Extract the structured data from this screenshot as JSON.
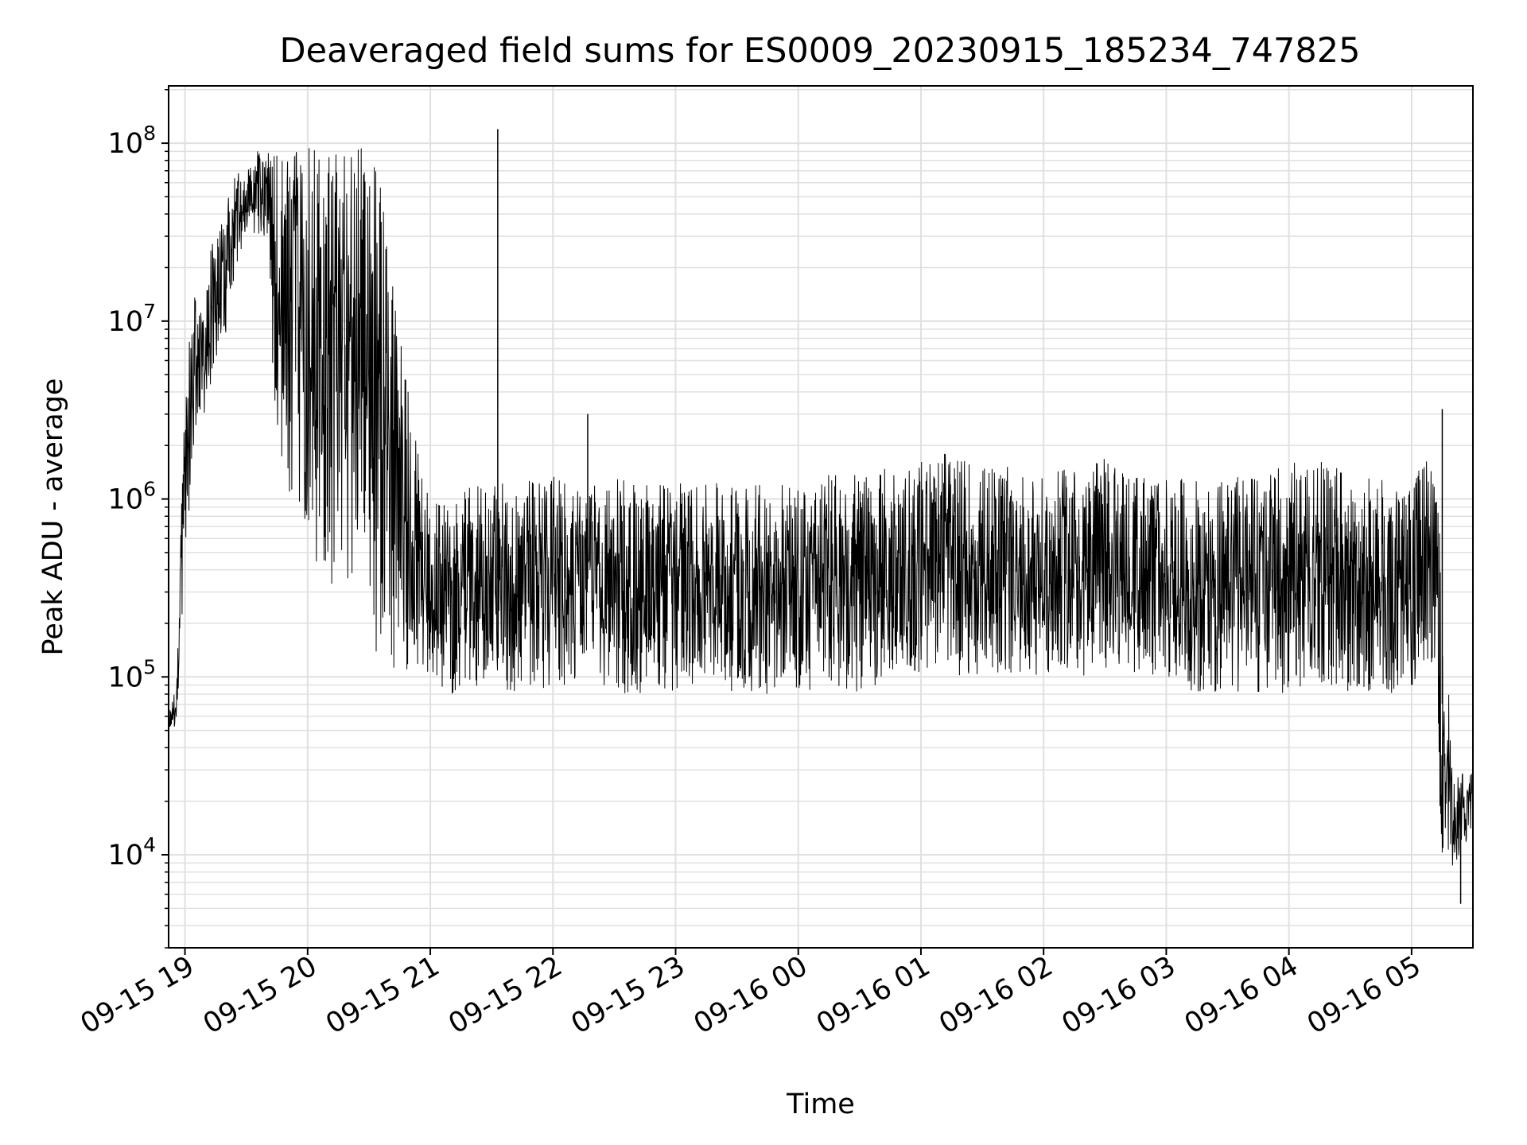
{
  "chart_data": {
    "type": "line",
    "title": "Deaveraged field sums for ES0009_20230915_185234_747825",
    "xlabel": "Time",
    "ylabel": "Peak ADU - average",
    "yscale": "log",
    "ylim": [
      3000,
      210000000
    ],
    "xlim": [
      "2023-09-15 18:52",
      "2023-09-16 05:30"
    ],
    "grid": true,
    "line_color": "#000000",
    "grid_color": "#e0e0e0",
    "x_ticks": [
      {
        "x": "2023-09-15 19:00",
        "label": "09-15 19"
      },
      {
        "x": "2023-09-15 20:00",
        "label": "09-15 20"
      },
      {
        "x": "2023-09-15 21:00",
        "label": "09-15 21"
      },
      {
        "x": "2023-09-15 22:00",
        "label": "09-15 22"
      },
      {
        "x": "2023-09-15 23:00",
        "label": "09-15 23"
      },
      {
        "x": "2023-09-16 00:00",
        "label": "09-16 00"
      },
      {
        "x": "2023-09-16 01:00",
        "label": "09-16 01"
      },
      {
        "x": "2023-09-16 02:00",
        "label": "09-16 02"
      },
      {
        "x": "2023-09-16 03:00",
        "label": "09-16 03"
      },
      {
        "x": "2023-09-16 04:00",
        "label": "09-16 04"
      },
      {
        "x": "2023-09-16 05:00",
        "label": "09-16 05"
      }
    ],
    "y_ticks": [
      {
        "value": 10000,
        "base": "10",
        "exp": "4"
      },
      {
        "value": 100000,
        "base": "10",
        "exp": "5"
      },
      {
        "value": 1000000,
        "base": "10",
        "exp": "6"
      },
      {
        "value": 10000000,
        "base": "10",
        "exp": "7"
      },
      {
        "value": 100000000,
        "base": "10",
        "exp": "8"
      }
    ],
    "series": [
      {
        "type": "envelope",
        "x": [
          "2023-09-15 18:52",
          "2023-09-15 18:56",
          "2023-09-15 19:00",
          "2023-09-15 19:05",
          "2023-09-15 19:10",
          "2023-09-15 19:15",
          "2023-09-15 19:20",
          "2023-09-15 19:25",
          "2023-09-15 19:30",
          "2023-09-15 19:35",
          "2023-09-15 19:40",
          "2023-09-15 19:45",
          "2023-09-15 19:50",
          "2023-09-15 19:55",
          "2023-09-15 20:00",
          "2023-09-15 20:05",
          "2023-09-15 20:10",
          "2023-09-15 20:15",
          "2023-09-15 20:20",
          "2023-09-15 20:25",
          "2023-09-15 20:30",
          "2023-09-15 20:35",
          "2023-09-15 20:40",
          "2023-09-15 20:45",
          "2023-09-15 20:50",
          "2023-09-15 20:55",
          "2023-09-15 21:00",
          "2023-09-15 21:10",
          "2023-09-15 21:20",
          "2023-09-15 21:30",
          "2023-09-15 21:40",
          "2023-09-15 21:50",
          "2023-09-15 22:00",
          "2023-09-15 22:15",
          "2023-09-15 22:30",
          "2023-09-15 22:45",
          "2023-09-15 23:00",
          "2023-09-15 23:15",
          "2023-09-15 23:30",
          "2023-09-15 23:45",
          "2023-09-16 00:00",
          "2023-09-16 00:15",
          "2023-09-16 00:30",
          "2023-09-16 00:45",
          "2023-09-16 01:00",
          "2023-09-16 01:15",
          "2023-09-16 01:30",
          "2023-09-16 01:45",
          "2023-09-16 02:00",
          "2023-09-16 02:15",
          "2023-09-16 02:30",
          "2023-09-16 02:45",
          "2023-09-16 03:00",
          "2023-09-16 03:15",
          "2023-09-16 03:30",
          "2023-09-16 03:45",
          "2023-09-16 04:00",
          "2023-09-16 04:15",
          "2023-09-16 04:30",
          "2023-09-16 04:45",
          "2023-09-16 05:00",
          "2023-09-16 05:10",
          "2023-09-16 05:15",
          "2023-09-16 05:20",
          "2023-09-16 05:25",
          "2023-09-16 05:30"
        ],
        "low": [
          50000,
          50000,
          500000,
          2000000,
          3000000,
          5000000,
          8000000,
          20000000,
          30000000,
          30000000,
          20000000,
          2000000,
          1000000,
          800000,
          500000,
          400000,
          300000,
          300000,
          300000,
          300000,
          300000,
          100000,
          100000,
          100000,
          100000,
          100000,
          100000,
          80000,
          80000,
          100000,
          80000,
          80000,
          80000,
          100000,
          80000,
          80000,
          80000,
          100000,
          80000,
          80000,
          80000,
          80000,
          80000,
          100000,
          100000,
          100000,
          100000,
          100000,
          100000,
          100000,
          100000,
          100000,
          100000,
          80000,
          80000,
          80000,
          80000,
          80000,
          80000,
          80000,
          80000,
          100000,
          10000,
          8000,
          10000,
          15000
        ],
        "high": [
          60000,
          100000,
          5000000,
          15000000,
          20000000,
          35000000,
          50000000,
          70000000,
          80000000,
          90000000,
          100000000,
          100000000,
          100000000,
          100000000,
          95000000,
          95000000,
          100000000,
          100000000,
          105000000,
          105000000,
          110000000,
          110000000,
          20000000,
          10000000,
          5000000,
          1500000,
          1000000,
          900000,
          1200000,
          1400000,
          1300000,
          1300000,
          1400000,
          1300000,
          1300000,
          1300000,
          1300000,
          1200000,
          1300000,
          1200000,
          1300000,
          1400000,
          1500000,
          1500000,
          1800000,
          1800000,
          1600000,
          1500000,
          1300000,
          1600000,
          1700000,
          1500000,
          1300000,
          1300000,
          1300000,
          1400000,
          1600000,
          1700000,
          1400000,
          1300000,
          1300000,
          2000000,
          500000,
          30000,
          30000,
          30000
        ]
      }
    ],
    "annotations": [
      {
        "type": "spike",
        "x": "2023-09-15 21:33",
        "y": 120000000
      },
      {
        "type": "spike",
        "x": "2023-09-15 22:17",
        "y": 3000000
      },
      {
        "type": "spike",
        "x": "2023-09-16 05:15",
        "y": 3200000
      },
      {
        "type": "dip",
        "x": "2023-09-16 05:24",
        "y": 5300
      }
    ]
  }
}
